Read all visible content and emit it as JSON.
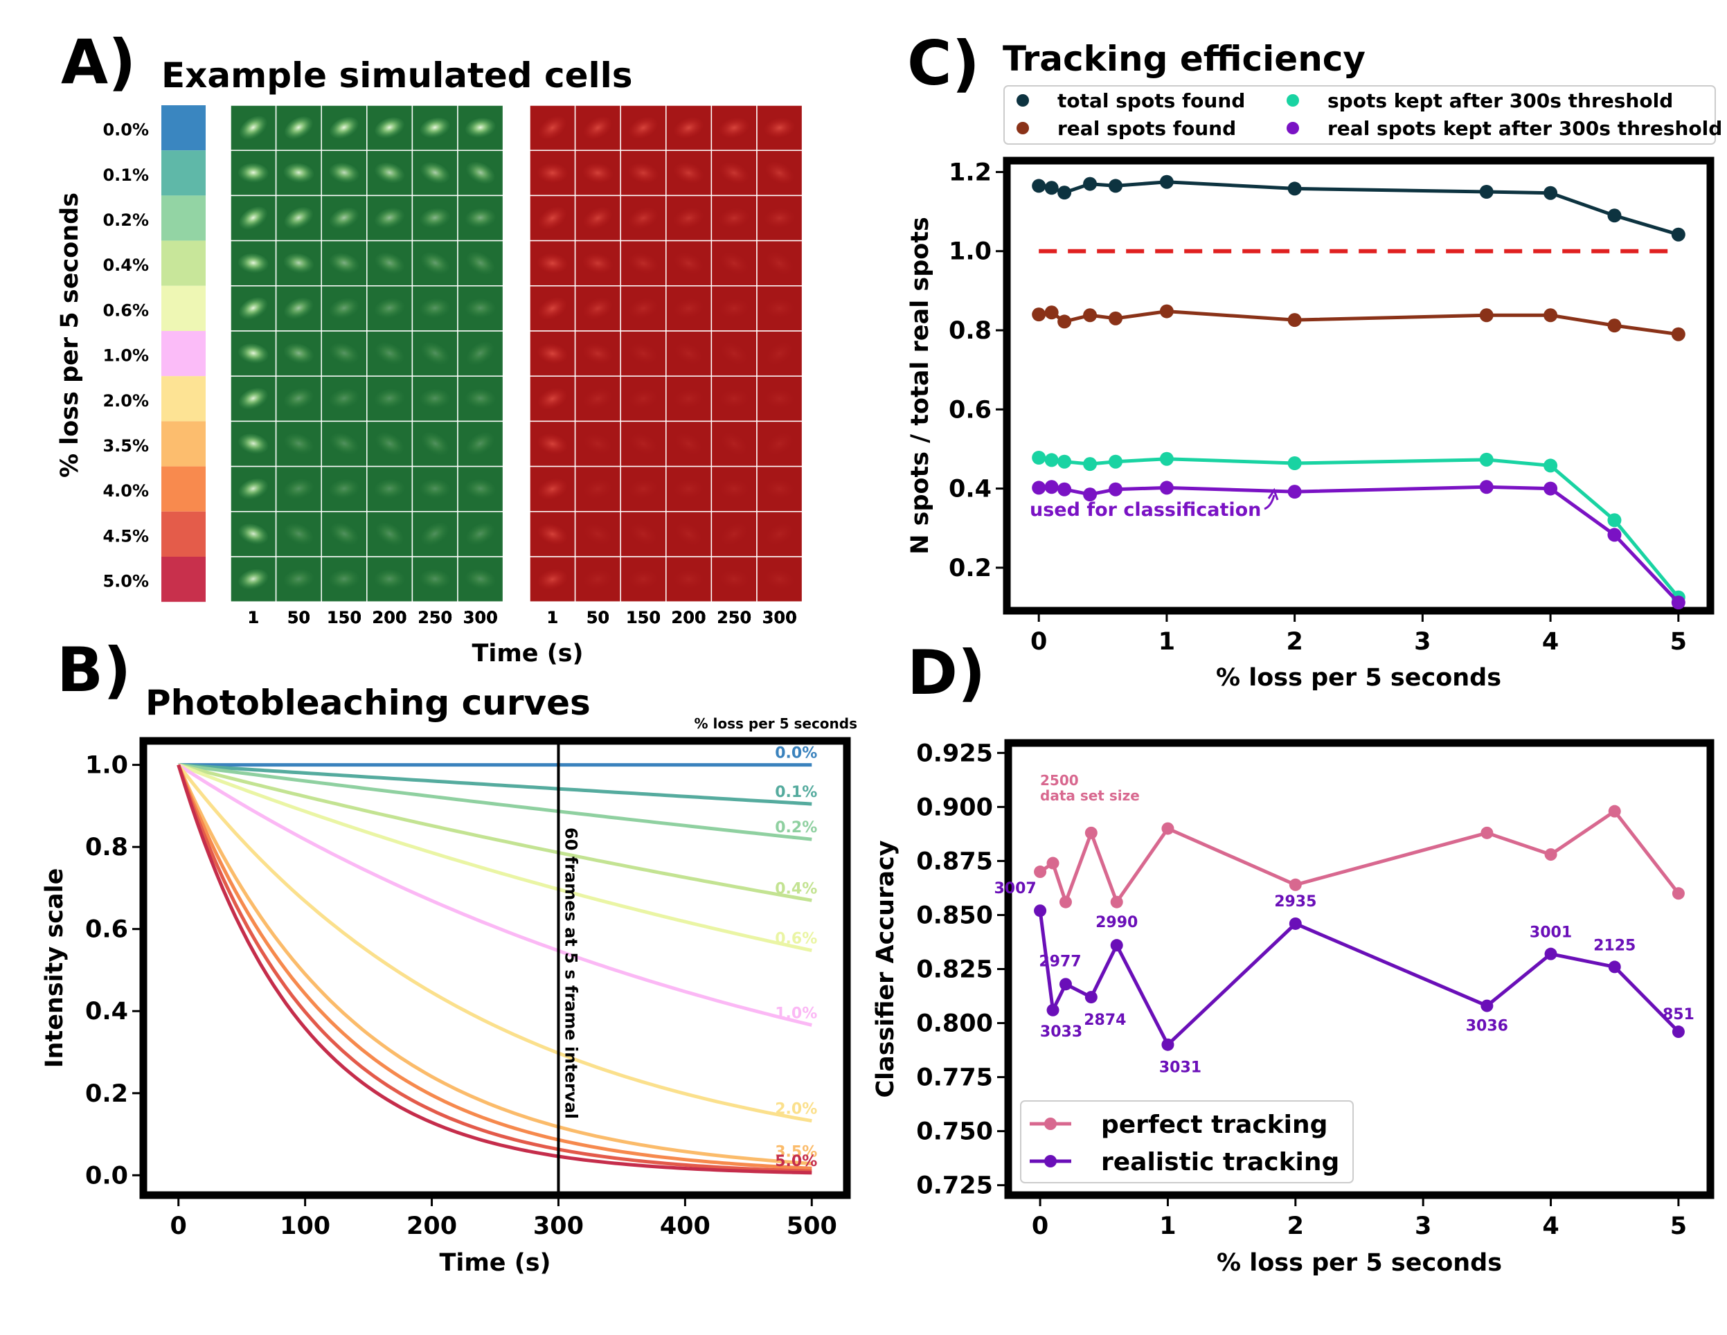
{
  "panels": {
    "A": {
      "letter": "A)",
      "title": "Example simulated cells",
      "ylabel": "% loss per 5 seconds",
      "xlabel": "Time (s)",
      "rows": [
        "0.0%",
        "0.1%",
        "0.2%",
        "0.4%",
        "0.6%",
        "1.0%",
        "2.0%",
        "3.5%",
        "4.0%",
        "4.5%",
        "5.0%"
      ],
      "row_colors": [
        "#3a86c0",
        "#5fb8a8",
        "#93d4a4",
        "#c8e69a",
        "#eef7b4",
        "#fbbcf8",
        "#fde394",
        "#fcbd6e",
        "#f88a4e",
        "#e45c4a",
        "#c8304c"
      ],
      "time_ticks": [
        "1",
        "50",
        "150",
        "200",
        "250",
        "300"
      ],
      "green_fade": [
        0,
        0.01,
        0.02,
        0.04,
        0.06,
        0.1,
        0.2,
        0.35,
        0.4,
        0.45,
        0.5
      ],
      "green_base": "#1f6e34",
      "red_base": "#a61617"
    },
    "B": {
      "letter": "B)",
      "title": "Photobleaching curves"
    },
    "C": {
      "letter": "C)",
      "title": "Tracking efficiency"
    },
    "D": {
      "letter": "D)"
    }
  },
  "chart_data": [
    {
      "panel": "B",
      "type": "line",
      "title": "",
      "xlabel": "Time (s)",
      "ylabel": "Intensity scale",
      "xlim": [
        -25,
        525
      ],
      "ylim": [
        -0.04,
        1.05
      ],
      "xticks": [
        0,
        100,
        200,
        300,
        400,
        500
      ],
      "yticks": [
        0.0,
        0.2,
        0.4,
        0.6,
        0.8,
        1.0
      ],
      "legend_title": "% loss per 5 seconds",
      "vline": {
        "x": 300,
        "label": "60 frames at 5 s frame interval"
      },
      "series": [
        {
          "name": "0.0%",
          "rate": 0.0,
          "color": "#3a82bd",
          "labeled": true
        },
        {
          "name": "0.1%",
          "rate": 0.001,
          "color": "#55ab9e",
          "labeled": true
        },
        {
          "name": "0.2%",
          "rate": 0.002,
          "color": "#8fd0a0",
          "labeled": true
        },
        {
          "name": "0.4%",
          "rate": 0.004,
          "color": "#c3e392",
          "labeled": true
        },
        {
          "name": "0.6%",
          "rate": 0.006,
          "color": "#eaf5a4",
          "labeled": true
        },
        {
          "name": "1.0%",
          "rate": 0.01,
          "color": "#fbb8f5",
          "labeled": true
        },
        {
          "name": "2.0%",
          "rate": 0.02,
          "color": "#fbe08c",
          "labeled": true
        },
        {
          "name": "3.5%",
          "rate": 0.035,
          "color": "#fbbb6a",
          "labeled": true
        },
        {
          "name": "4.0%",
          "rate": 0.04,
          "color": "#f6894d",
          "labeled": false
        },
        {
          "name": "4.5%",
          "rate": 0.045,
          "color": "#e35a4a",
          "labeled": false
        },
        {
          "name": "5.0%",
          "rate": 0.05,
          "color": "#c52d4b",
          "labeled": true
        }
      ]
    },
    {
      "panel": "C",
      "type": "line",
      "title": "Tracking efficiency",
      "xlabel": "% loss per 5 seconds",
      "ylabel": "N spots / total real spots",
      "xlim": [
        -0.25,
        5.25
      ],
      "ylim": [
        0.1,
        1.22
      ],
      "xticks": [
        0,
        1,
        2,
        3,
        4,
        5
      ],
      "yticks": [
        0.2,
        0.4,
        0.6,
        0.8,
        1.0,
        1.2
      ],
      "x": [
        0,
        0.1,
        0.2,
        0.4,
        0.6,
        1,
        2,
        3.5,
        4,
        4.5,
        5
      ],
      "hline": {
        "y": 1.0,
        "color": "#e02020"
      },
      "annotation": "used for classification",
      "legend_placement": "top",
      "series": [
        {
          "name": "total spots found",
          "color": "#0d3340",
          "values": [
            1.165,
            1.16,
            1.148,
            1.17,
            1.165,
            1.175,
            1.158,
            1.15,
            1.147,
            1.09,
            1.042
          ]
        },
        {
          "name": "real spots found",
          "color": "#8a3218",
          "values": [
            0.84,
            0.845,
            0.822,
            0.838,
            0.83,
            0.848,
            0.826,
            0.838,
            0.838,
            0.812,
            0.79
          ]
        },
        {
          "name": "spots kept after 300s threshold",
          "color": "#19d3a2",
          "values": [
            0.478,
            0.472,
            0.468,
            0.462,
            0.468,
            0.475,
            0.464,
            0.473,
            0.458,
            0.32,
            0.125
          ]
        },
        {
          "name": "real spots kept after 300s threshold",
          "color": "#7a12c4",
          "values": [
            0.402,
            0.404,
            0.398,
            0.385,
            0.398,
            0.402,
            0.392,
            0.404,
            0.4,
            0.283,
            0.112
          ]
        }
      ]
    },
    {
      "panel": "D",
      "type": "line",
      "title": "",
      "xlabel": "% loss per 5 seconds",
      "ylabel": "Classifier Accuracy",
      "xlim": [
        -0.25,
        5.25
      ],
      "ylim": [
        0.722,
        0.928
      ],
      "xticks": [
        0,
        1,
        2,
        3,
        4,
        5
      ],
      "yticks": [
        0.725,
        0.75,
        0.775,
        0.8,
        0.825,
        0.85,
        0.875,
        0.9,
        0.925
      ],
      "x": [
        0,
        0.1,
        0.2,
        0.4,
        0.6,
        1,
        2,
        3.5,
        4,
        4.5,
        5
      ],
      "annotation_line1": "2500",
      "annotation_line2": "data set size",
      "legend_placement": "lower-left",
      "series": [
        {
          "name": "perfect tracking",
          "color": "#d8688f",
          "values": [
            0.87,
            0.874,
            0.856,
            0.888,
            0.856,
            0.89,
            0.864,
            0.888,
            0.878,
            0.898,
            0.86
          ]
        },
        {
          "name": "realistic tracking",
          "color": "#6a0fb8",
          "values": [
            0.852,
            0.806,
            0.818,
            0.812,
            0.836,
            0.79,
            0.846,
            0.808,
            0.832,
            0.826,
            0.796
          ],
          "point_labels": [
            "3007",
            "3033",
            "2977",
            "2874",
            "2990",
            "3031",
            "2935",
            "3036",
            "3001",
            "2125",
            "851"
          ]
        }
      ]
    }
  ]
}
